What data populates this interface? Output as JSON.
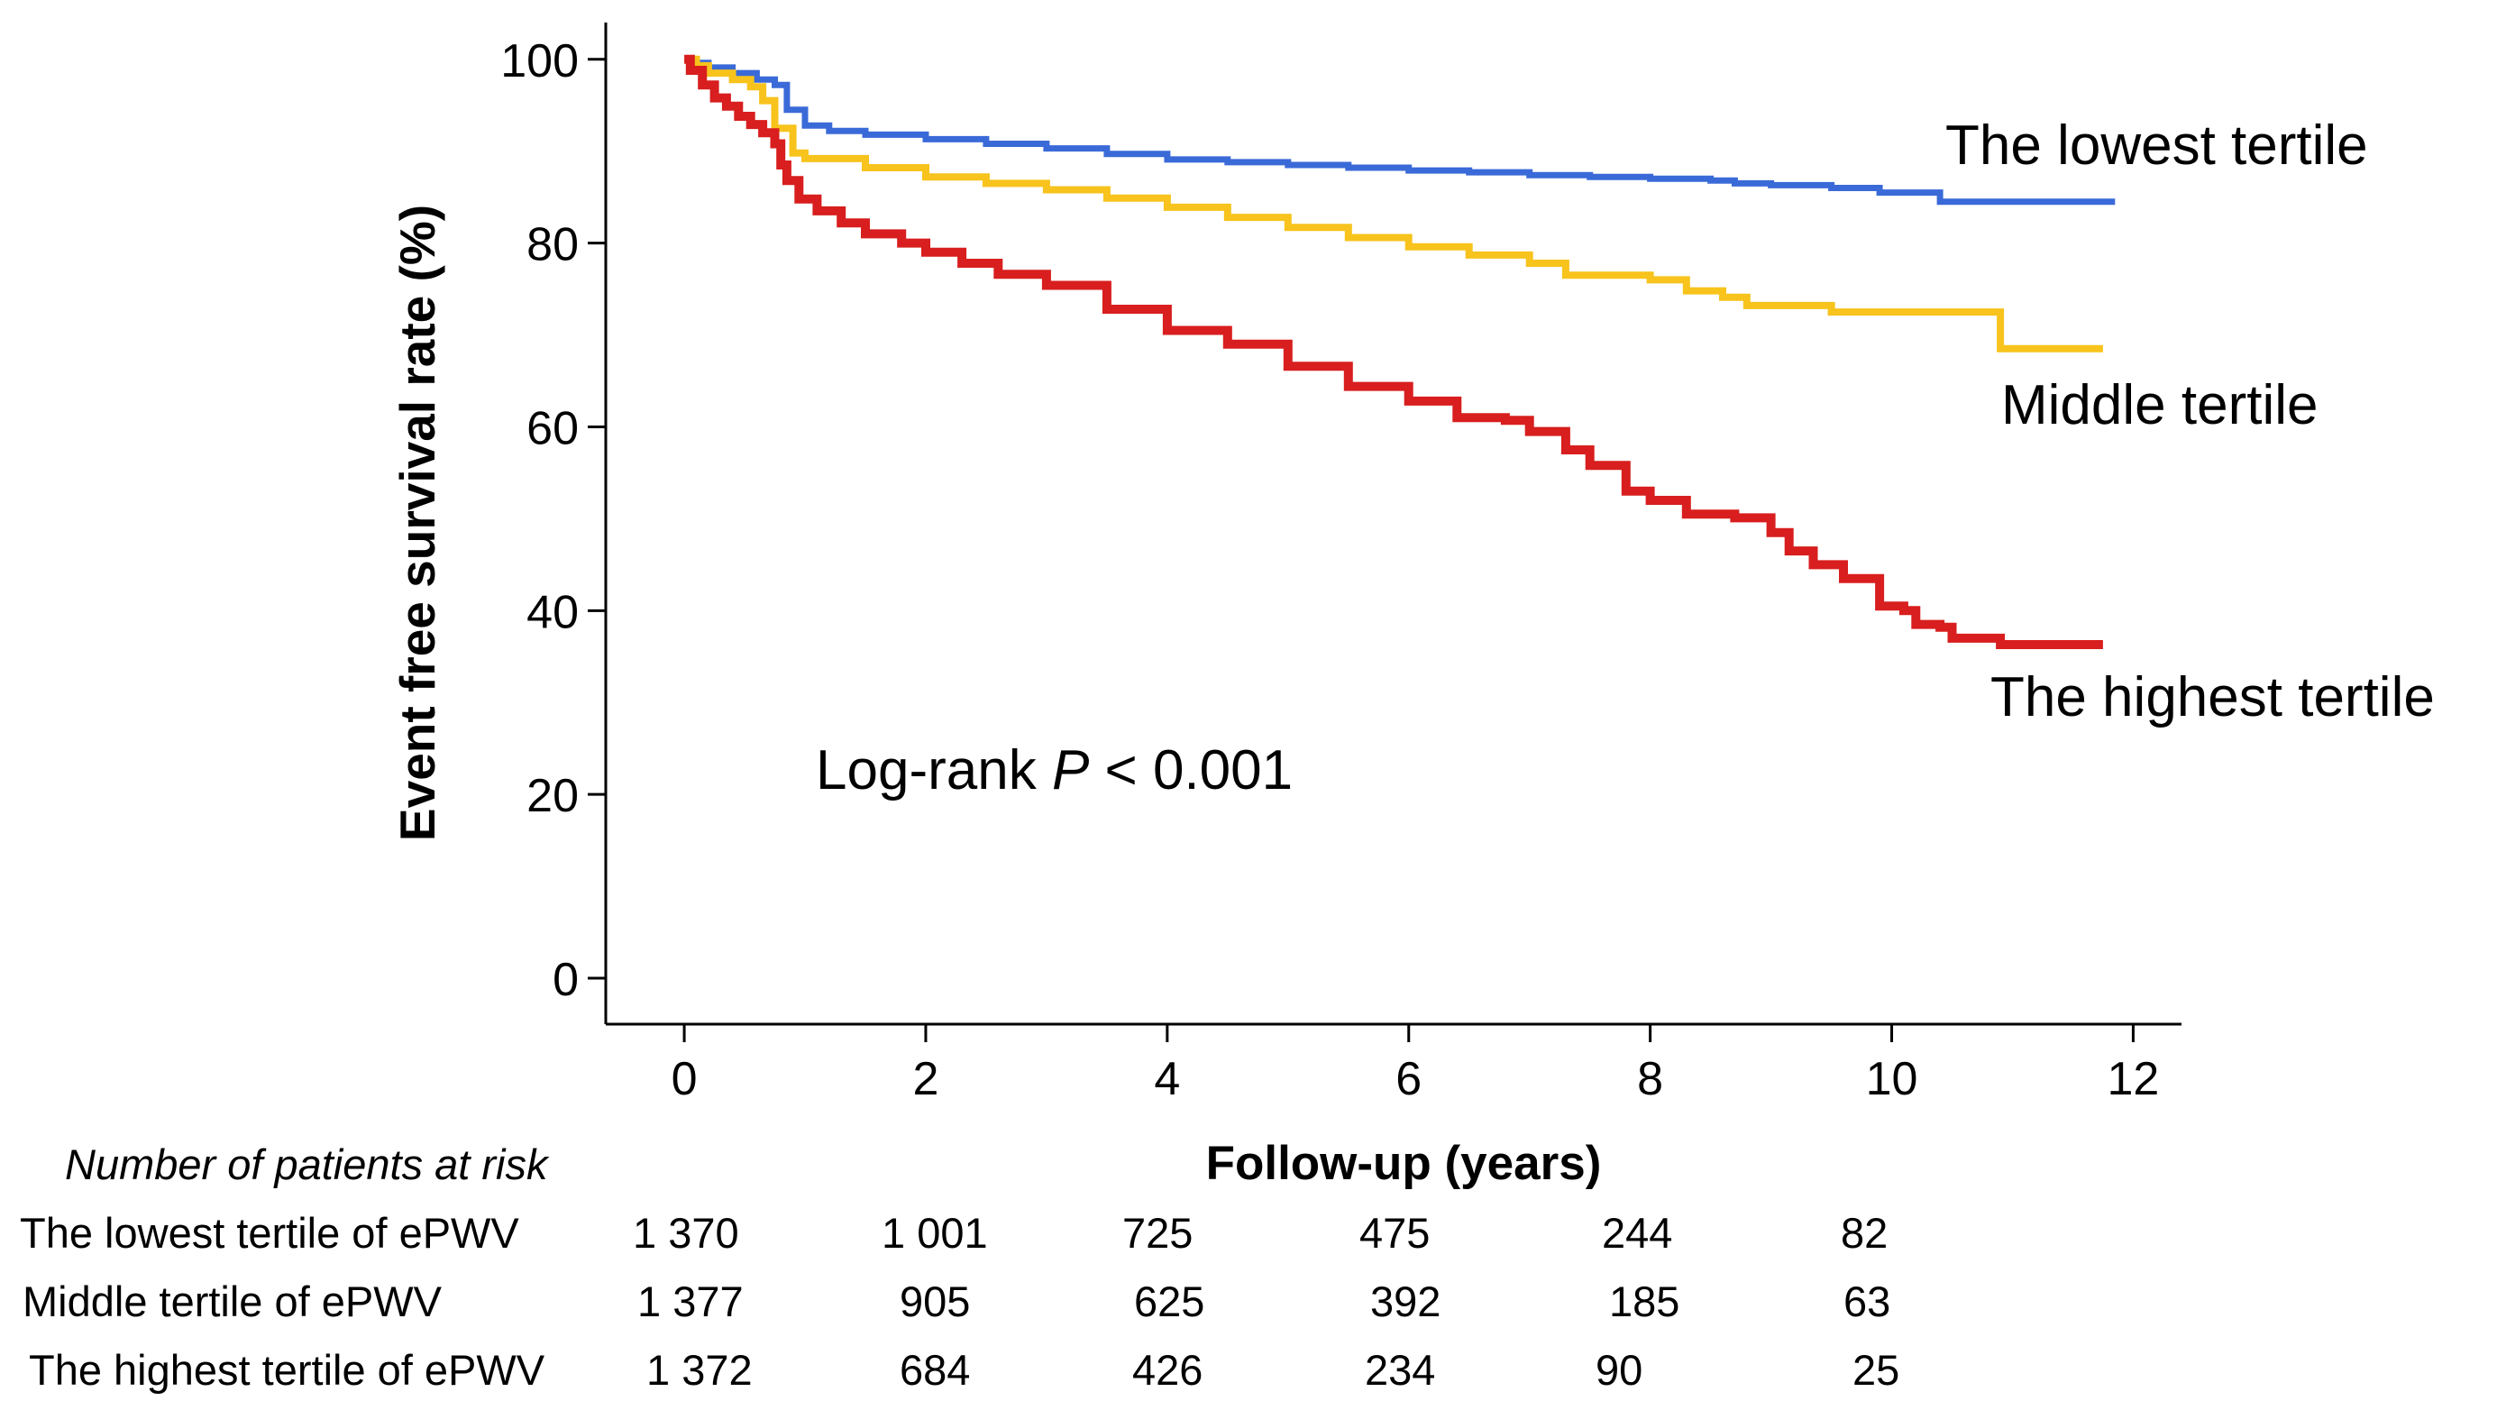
{
  "chart_data": {
    "type": "line",
    "subtype": "kaplan-meier",
    "xlabel": "Follow-up (years)",
    "ylabel": "Event free survival rate (%)",
    "xlim": [
      -0.65,
      12.4
    ],
    "ylim": [
      -5,
      104
    ],
    "x_ticks": [
      0,
      2,
      4,
      6,
      8,
      10,
      12
    ],
    "y_ticks": [
      0,
      20,
      40,
      60,
      80,
      100
    ],
    "grid": false,
    "legend": "none",
    "annotation": {
      "prefix": "Log-rank ",
      "p_symbol": "P",
      "suffix": " < 0.001"
    },
    "series": [
      {
        "name": "The lowest tertile",
        "color": "#3A6AD8",
        "points": [
          [
            0,
            100
          ],
          [
            0.1,
            99.6
          ],
          [
            0.2,
            99.1
          ],
          [
            0.4,
            98.5
          ],
          [
            0.6,
            97.8
          ],
          [
            0.75,
            97.2
          ],
          [
            0.85,
            94.5
          ],
          [
            1.0,
            92.8
          ],
          [
            1.2,
            92.2
          ],
          [
            1.5,
            91.8
          ],
          [
            2,
            91.3
          ],
          [
            2.5,
            90.8
          ],
          [
            3,
            90.3
          ],
          [
            3.5,
            89.7
          ],
          [
            4,
            89.1
          ],
          [
            4.5,
            88.8
          ],
          [
            5,
            88.5
          ],
          [
            5.5,
            88.2
          ],
          [
            6,
            87.9
          ],
          [
            6.5,
            87.7
          ],
          [
            7,
            87.4
          ],
          [
            7.5,
            87.2
          ],
          [
            8,
            87.0
          ],
          [
            8.5,
            86.8
          ],
          [
            8.7,
            86.5
          ],
          [
            9,
            86.3
          ],
          [
            9.5,
            86.0
          ],
          [
            9.9,
            85.5
          ],
          [
            10.4,
            84.5
          ],
          [
            11.0,
            84.5
          ],
          [
            11.85,
            84.5
          ]
        ]
      },
      {
        "name": "Middle tertile",
        "color": "#F7C31C",
        "points": [
          [
            0,
            100
          ],
          [
            0.1,
            99.3
          ],
          [
            0.2,
            98.5
          ],
          [
            0.4,
            97.8
          ],
          [
            0.55,
            97.0
          ],
          [
            0.65,
            95.5
          ],
          [
            0.75,
            92.5
          ],
          [
            0.9,
            89.8
          ],
          [
            1.0,
            89.2
          ],
          [
            1.5,
            88.2
          ],
          [
            2,
            87.2
          ],
          [
            2.5,
            86.5
          ],
          [
            3,
            85.8
          ],
          [
            3.5,
            84.9
          ],
          [
            4,
            83.9
          ],
          [
            4.5,
            82.8
          ],
          [
            5,
            81.7
          ],
          [
            5.5,
            80.6
          ],
          [
            6,
            79.6
          ],
          [
            6.5,
            78.7
          ],
          [
            7,
            77.8
          ],
          [
            7.3,
            76.5
          ],
          [
            8,
            76.0
          ],
          [
            8.3,
            74.8
          ],
          [
            8.6,
            74.1
          ],
          [
            8.8,
            73.2
          ],
          [
            9.2,
            73.2
          ],
          [
            9.5,
            72.5
          ],
          [
            10.0,
            72.5
          ],
          [
            10.9,
            72.5
          ],
          [
            10.9,
            68.5
          ],
          [
            11.75,
            68.5
          ]
        ]
      },
      {
        "name": "The highest tertile",
        "color": "#D81E1E",
        "points": [
          [
            0,
            100
          ],
          [
            0.05,
            98.8
          ],
          [
            0.15,
            97.2
          ],
          [
            0.25,
            95.8
          ],
          [
            0.35,
            94.9
          ],
          [
            0.45,
            93.8
          ],
          [
            0.55,
            92.9
          ],
          [
            0.65,
            92.0
          ],
          [
            0.75,
            90.8
          ],
          [
            0.8,
            88.5
          ],
          [
            0.85,
            86.8
          ],
          [
            0.95,
            84.8
          ],
          [
            1.1,
            83.5
          ],
          [
            1.3,
            82.2
          ],
          [
            1.5,
            81.0
          ],
          [
            1.8,
            80.0
          ],
          [
            2,
            79.0
          ],
          [
            2.3,
            77.8
          ],
          [
            2.6,
            76.6
          ],
          [
            3,
            75.4
          ],
          [
            3.5,
            72.8
          ],
          [
            4,
            70.5
          ],
          [
            4.5,
            69.0
          ],
          [
            5,
            66.6
          ],
          [
            5.5,
            64.4
          ],
          [
            6,
            62.8
          ],
          [
            6.4,
            61.0
          ],
          [
            6.8,
            60.7
          ],
          [
            7,
            59.5
          ],
          [
            7.3,
            57.5
          ],
          [
            7.5,
            55.8
          ],
          [
            7.8,
            53.0
          ],
          [
            8,
            52.0
          ],
          [
            8.3,
            50.5
          ],
          [
            8.7,
            50.1
          ],
          [
            8.9,
            50.1
          ],
          [
            9.0,
            48.5
          ],
          [
            9.15,
            46.5
          ],
          [
            9.35,
            45.0
          ],
          [
            9.6,
            43.5
          ],
          [
            9.9,
            40.5
          ],
          [
            10.1,
            40.0
          ],
          [
            10.2,
            38.5
          ],
          [
            10.4,
            38.2
          ],
          [
            10.5,
            37.0
          ],
          [
            10.9,
            36.3
          ],
          [
            11.75,
            36.3
          ]
        ]
      }
    ],
    "curve_labels": [
      "The lowest tertile",
      "Middle tertile",
      "The highest tertile"
    ],
    "risk_table": {
      "title": "Number of patients at risk",
      "rows": [
        {
          "label": "The lowest tertile of ePWV",
          "values": [
            "1 370",
            "1 001",
            "725",
            "475",
            "244",
            "82"
          ]
        },
        {
          "label": "Middle tertile of ePWV",
          "values": [
            "1 377",
            "905",
            "625",
            "392",
            "185",
            "63"
          ]
        },
        {
          "label": "The highest tertile of ePWV",
          "values": [
            "1 372",
            "684",
            "426",
            "234",
            "90",
            "25"
          ]
        }
      ]
    }
  }
}
